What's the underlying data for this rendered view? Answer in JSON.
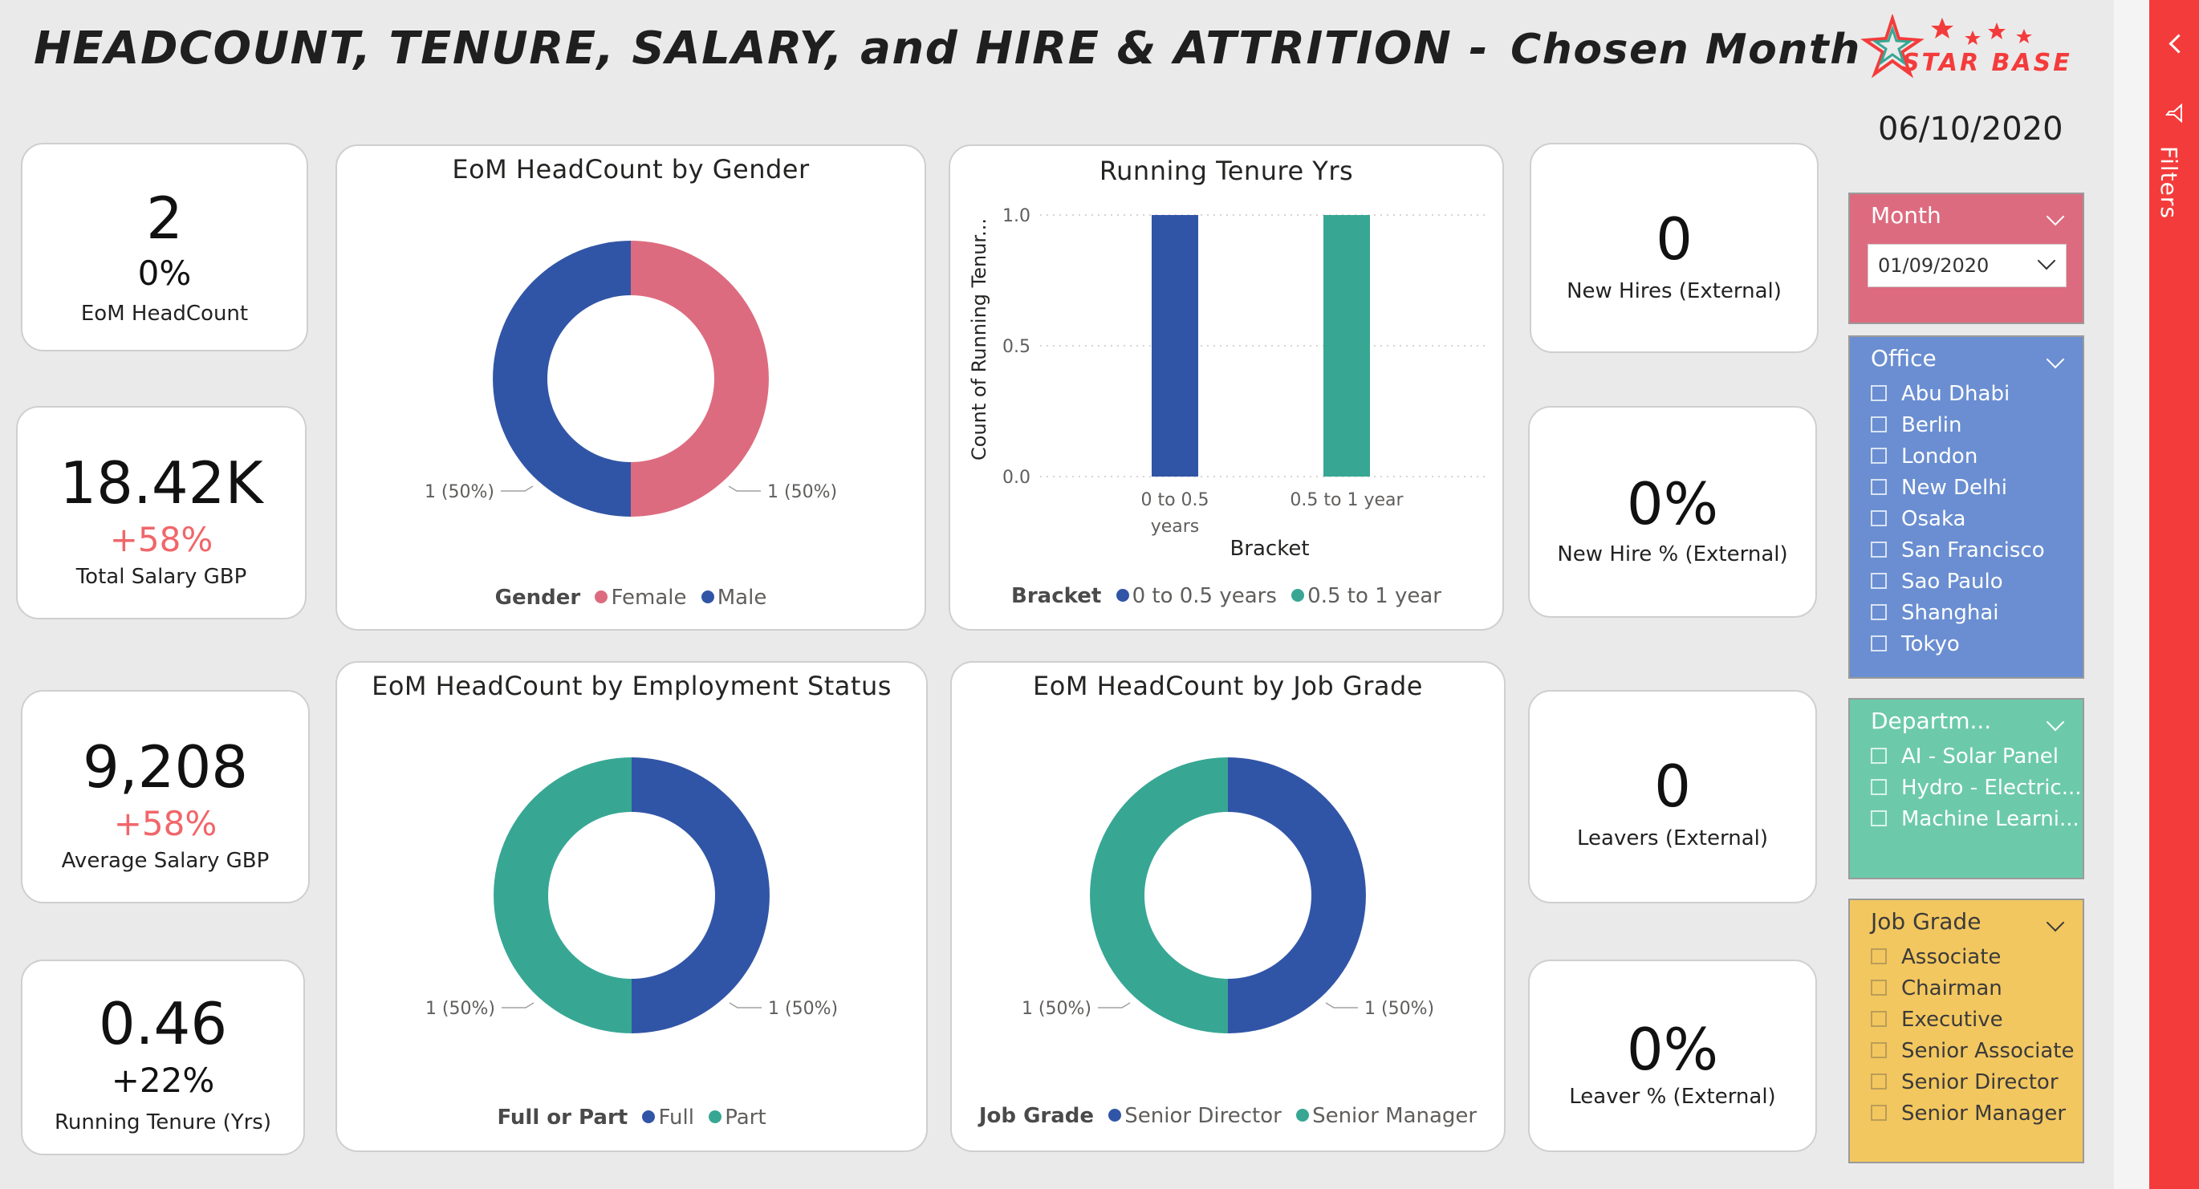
{
  "page": {
    "title_main": "HEADCOUNT, TENURE, SALARY, and HIRE & ATTRITION -",
    "title_sub": "Chosen Month",
    "date": "06/10/2020",
    "logo_text": "STAR BASE",
    "filters_label": "Filters"
  },
  "kpis": {
    "headcount": {
      "value": "2",
      "change": "0%",
      "label": "EoM HeadCount"
    },
    "total_salary": {
      "value": "18.42K",
      "change": "+58%",
      "label": "Total Salary GBP"
    },
    "average_salary": {
      "value": "9,208",
      "change": "+58%",
      "label": "Average Salary GBP"
    },
    "running_tenure": {
      "value": "0.46",
      "change": "+22%",
      "label": "Running Tenure (Yrs)"
    },
    "new_hires": {
      "value": "0",
      "label": "New Hires (External)"
    },
    "new_hire_pct": {
      "value": "0%",
      "label": "New Hire % (External)"
    },
    "leavers": {
      "value": "0",
      "label": "Leavers (External)"
    },
    "leaver_pct": {
      "value": "0%",
      "label": "Leaver % (External)"
    }
  },
  "colors": {
    "blue": "#3155a6",
    "pink": "#dd6b7f",
    "teal": "#37a794",
    "red_accent": "#f0666a",
    "filters_bar": "#f43b3b"
  },
  "slicers": {
    "month": {
      "label": "Month",
      "value": "01/09/2020",
      "color": "#dd6b7f"
    },
    "office": {
      "label": "Office",
      "color": "#6a8ed1",
      "items": [
        "Abu Dhabi",
        "Berlin",
        "London",
        "New Delhi",
        "Osaka",
        "San Francisco",
        "Sao Paulo",
        "Shanghai",
        "Tokyo"
      ]
    },
    "department": {
      "label": "Departm...",
      "color": "#6ccaaa",
      "items": [
        "AI - Solar Panel",
        "Hydro - Electric...",
        "Machine Learni..."
      ]
    },
    "job_grade": {
      "label": "Job Grade",
      "color": "#f3c75f",
      "items": [
        "Associate",
        "Chairman",
        "Executive",
        "Senior Associate",
        "Senior Director",
        "Senior Manager"
      ]
    }
  },
  "chart_data": [
    {
      "type": "pie",
      "title": "EoM HeadCount by Gender",
      "legend_title": "Gender",
      "categories": [
        "Female",
        "Male"
      ],
      "values": [
        1,
        1
      ],
      "labels": [
        "1 (50%)",
        "1 (50%)"
      ],
      "colors": [
        "#dd6b7f",
        "#3155a6"
      ],
      "donut": true
    },
    {
      "type": "bar",
      "title": "Running Tenure Yrs",
      "xlabel": "Bracket",
      "ylabel": "Count of Running Tenur...",
      "legend_title": "Bracket",
      "categories": [
        "0 to 0.5 years",
        "0.5 to 1 year"
      ],
      "values": [
        1,
        1
      ],
      "colors": [
        "#3155a6",
        "#37a794"
      ],
      "ylim": [
        0,
        1
      ],
      "yticks": [
        "0.0",
        "0.5",
        "1.0"
      ],
      "grid": true
    },
    {
      "type": "pie",
      "title": "EoM HeadCount by Employment Status",
      "legend_title": "Full or Part",
      "categories": [
        "Full",
        "Part"
      ],
      "values": [
        1,
        1
      ],
      "labels": [
        "1 (50%)",
        "1 (50%)"
      ],
      "colors": [
        "#3155a6",
        "#37a794"
      ],
      "donut": true
    },
    {
      "type": "pie",
      "title": "EoM HeadCount by Job Grade",
      "legend_title": "Job Grade",
      "categories": [
        "Senior Director",
        "Senior Manager"
      ],
      "values": [
        1,
        1
      ],
      "labels": [
        "1 (50%)",
        "1 (50%)"
      ],
      "colors": [
        "#3155a6",
        "#37a794"
      ],
      "donut": true
    }
  ]
}
